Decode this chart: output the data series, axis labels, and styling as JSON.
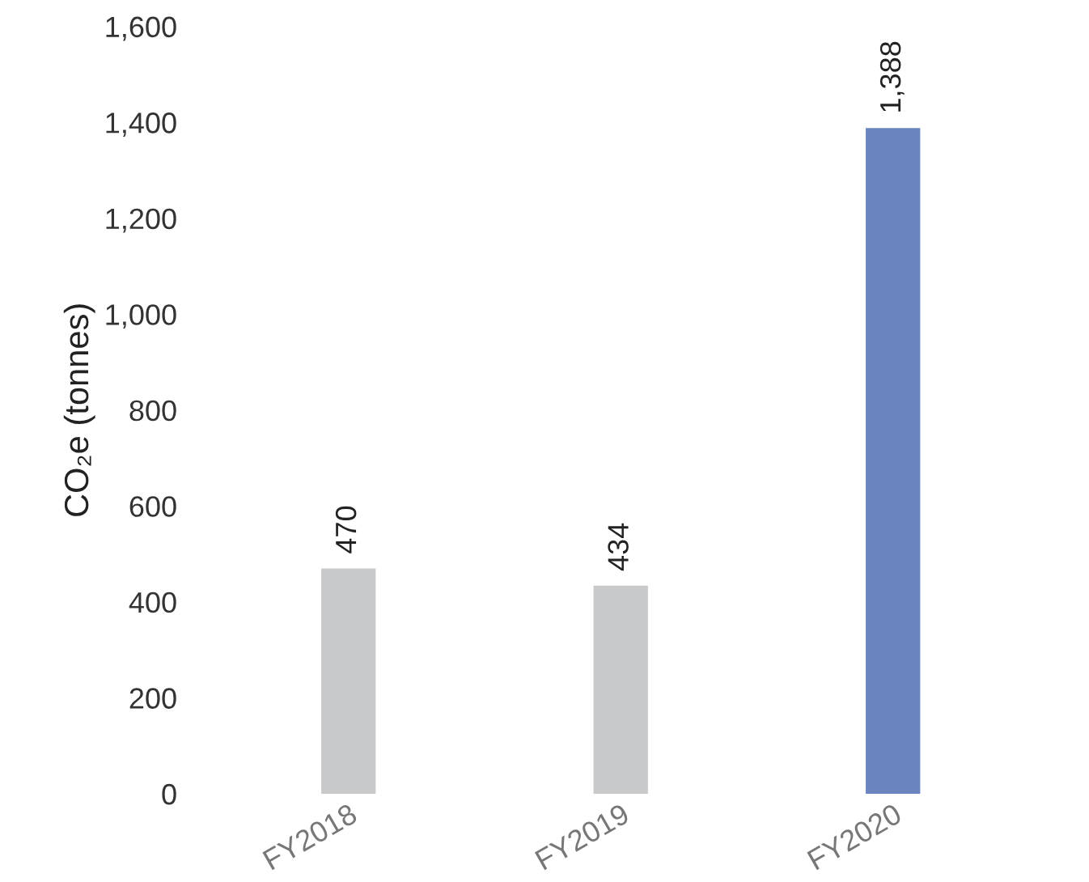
{
  "chart_data": {
    "type": "bar",
    "ylabel": "CO₂e (tonnes)",
    "categories": [
      "FY2018",
      "FY2019",
      "FY2020"
    ],
    "values": [
      470,
      434,
      1388
    ],
    "colors": [
      "#c8c9cb",
      "#c8c9cb",
      "#6a84c0"
    ],
    "value_labels": [
      "470",
      "434",
      "1,388"
    ],
    "ylim": [
      0,
      1600
    ],
    "yticks": [
      0,
      {
        "value": 200,
        "label": "200"
      },
      {
        "value": 400,
        "label": "400"
      },
      {
        "value": 600,
        "label": "600"
      },
      {
        "value": 800,
        "label": "800"
      },
      {
        "value": 1000,
        "label": "1,000"
      },
      {
        "value": 1200,
        "label": "1,200"
      },
      {
        "value": 1400,
        "label": "1,400"
      },
      {
        "value": 1600,
        "label": "1,600"
      }
    ],
    "grid": false,
    "legend": false
  }
}
